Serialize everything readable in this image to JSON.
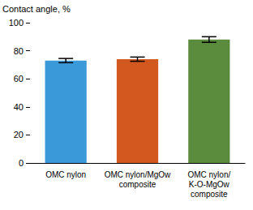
{
  "chart_data": {
    "type": "bar",
    "y_label": "Contact angle, %",
    "categories": [
      "OMC nylon",
      "OMC nylon/MgOw\ncomposite",
      "OMC nylon/\nK-O-MgOw\ncomposite"
    ],
    "values": [
      73,
      74,
      88
    ],
    "errors": [
      1.5,
      1.5,
      2
    ],
    "colors": [
      "#3a9ad9",
      "#d2581f",
      "#5b8b3c"
    ],
    "ylim": [
      0,
      100
    ],
    "yticks": [
      0,
      20,
      40,
      60,
      80,
      100
    ],
    "grid": false
  }
}
